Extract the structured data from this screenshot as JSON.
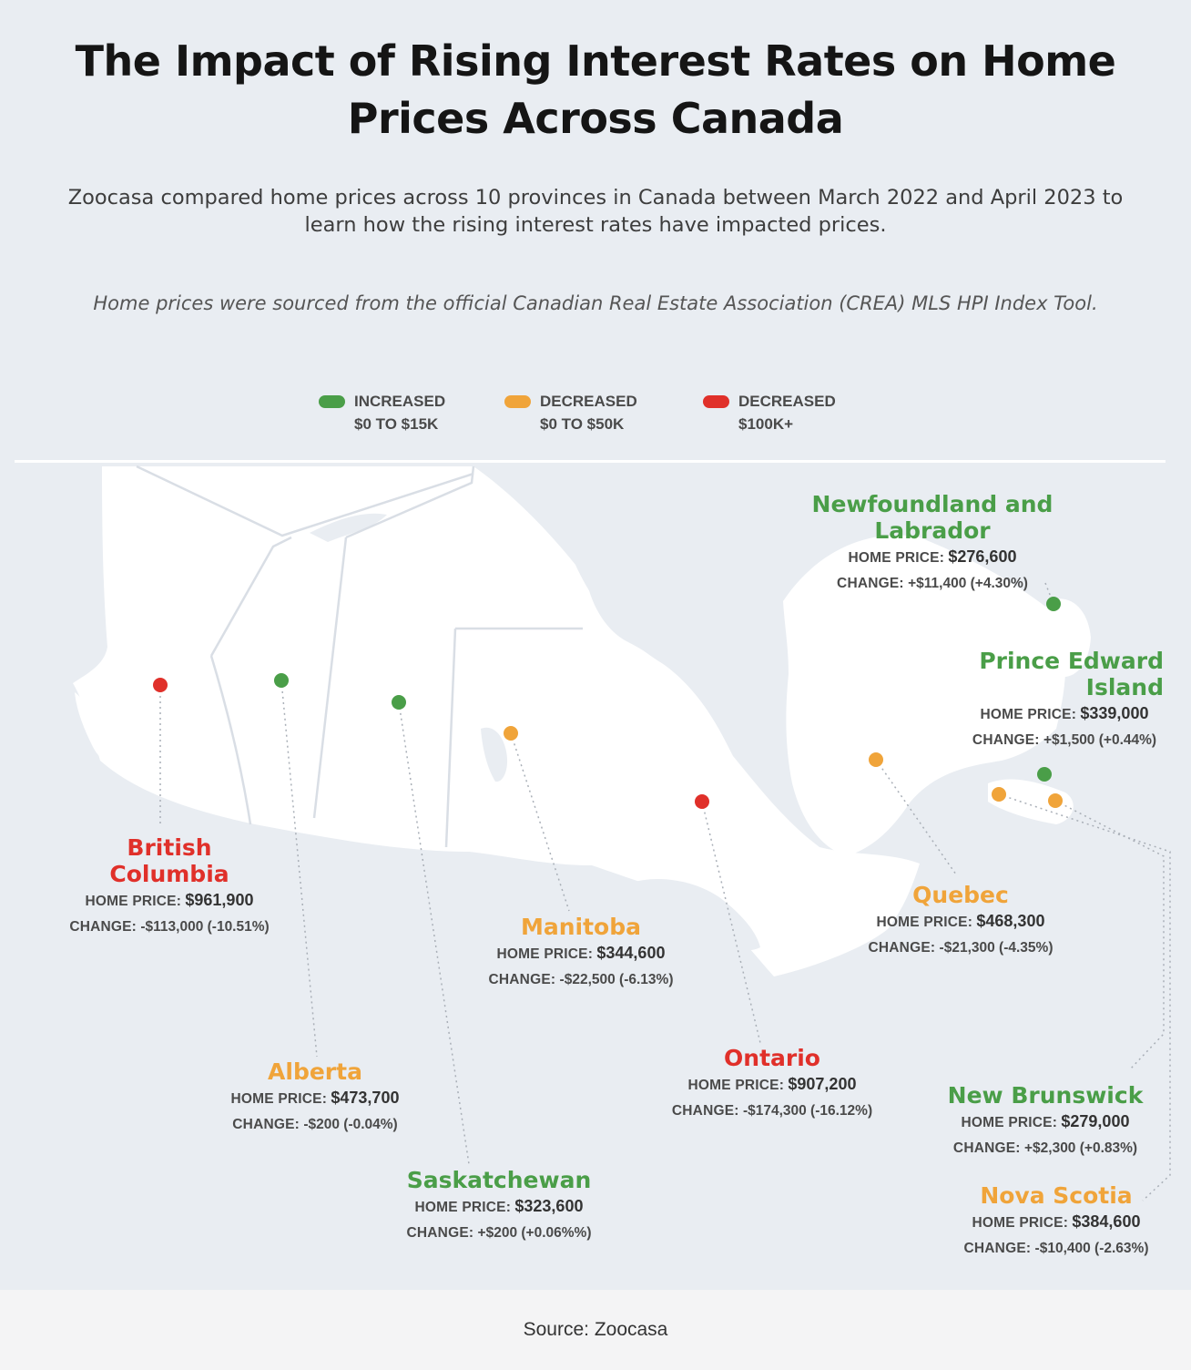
{
  "title": "The Impact of Rising Interest Rates on Home Prices Across Canada",
  "intro": "Zoocasa compared home prices across 10 provinces in Canada between March 2022 and April 2023 to learn how the rising interest rates have impacted prices.",
  "source_note": "Home prices were sourced from the official Canadian Real Estate Association (CREA) MLS HPI Index Tool.",
  "colors": {
    "increased": "#4a9e48",
    "decreased_small": "#f0a43a",
    "decreased_large": "#e0302a",
    "land": "#ffffff",
    "water": "#e9edf2"
  },
  "legend": [
    {
      "line1": "INCREASED",
      "line2": "$0 TO $15K",
      "color": "#4a9e48"
    },
    {
      "line1": "DECREASED",
      "line2": "$0 TO $50K",
      "color": "#f0a43a"
    },
    {
      "line1": "DECREASED",
      "line2": "$100K+",
      "color": "#e0302a"
    }
  ],
  "price_label": "HOME PRICE:",
  "change_label": "CHANGE:",
  "provinces": [
    {
      "name": "British Columbia",
      "name_lines": [
        "British",
        "Columbia"
      ],
      "home_price": "$961,900",
      "change": "-$113,000 (-10.51%)",
      "category": "decreased_large"
    },
    {
      "name": "Alberta",
      "name_lines": [
        "Alberta"
      ],
      "home_price": "$473,700",
      "change": "-$200 (-0.04%)",
      "category": "decreased_small"
    },
    {
      "name": "Saskatchewan",
      "name_lines": [
        "Saskatchewan"
      ],
      "home_price": "$323,600",
      "change": "+$200 (+0.06%%)",
      "category": "increased"
    },
    {
      "name": "Manitoba",
      "name_lines": [
        "Manitoba"
      ],
      "home_price": "$344,600",
      "change": "-$22,500 (-6.13%)",
      "category": "decreased_small"
    },
    {
      "name": "Ontario",
      "name_lines": [
        "Ontario"
      ],
      "home_price": "$907,200",
      "change": "-$174,300 (-16.12%)",
      "category": "decreased_large"
    },
    {
      "name": "Quebec",
      "name_lines": [
        "Quebec"
      ],
      "home_price": "$468,300",
      "change": "-$21,300 (-4.35%)",
      "category": "decreased_small"
    },
    {
      "name": "New Brunswick",
      "name_lines": [
        "New Brunswick"
      ],
      "home_price": "$279,000",
      "change": "+$2,300 (+0.83%)",
      "category": "increased"
    },
    {
      "name": "Nova Scotia",
      "name_lines": [
        "Nova Scotia"
      ],
      "home_price": "$384,600",
      "change": "-$10,400 (-2.63%)",
      "category": "decreased_small"
    },
    {
      "name": "Prince Edward Island",
      "name_lines": [
        "Prince Edward",
        "Island"
      ],
      "home_price": "$339,000",
      "change": "+$1,500 (+0.44%)",
      "category": "increased"
    },
    {
      "name": "Newfoundland and Labrador",
      "name_lines": [
        "Newfoundland and",
        "Labrador"
      ],
      "home_price": "$276,600",
      "change": "+$11,400 (+4.30%)",
      "category": "increased"
    }
  ],
  "footer_source": "Source: Zoocasa"
}
